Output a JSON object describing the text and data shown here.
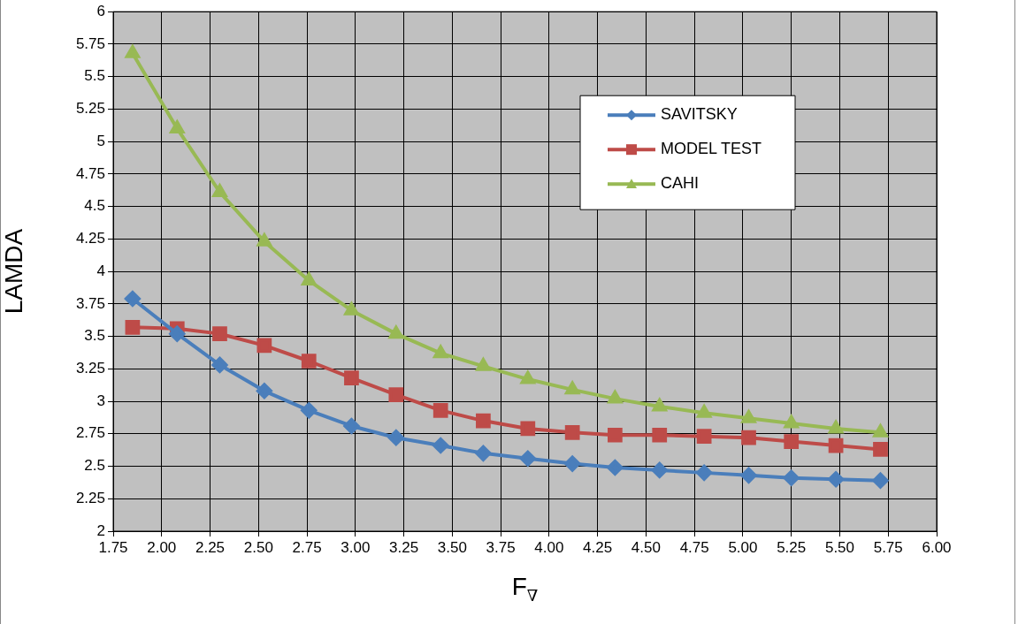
{
  "chart_data": {
    "type": "line",
    "xlabel": "F$_{∇}$",
    "ylabel": "LAMDA",
    "xlim": [
      1.75,
      6
    ],
    "xticks": [
      {
        "value": 1.75,
        "label": "1.75"
      },
      {
        "value": 2,
        "label": "2.00"
      },
      {
        "value": 2.25,
        "label": "2.25"
      },
      {
        "value": 2.5,
        "label": "2.50"
      },
      {
        "value": 2.75,
        "label": "2.75"
      },
      {
        "value": 3,
        "label": "3.00"
      },
      {
        "value": 3.25,
        "label": "3.25"
      },
      {
        "value": 3.5,
        "label": "3.50"
      },
      {
        "value": 3.75,
        "label": "3.75"
      },
      {
        "value": 4,
        "label": "4.00"
      },
      {
        "value": 4.25,
        "label": "4.25"
      },
      {
        "value": 4.5,
        "label": "4.50"
      },
      {
        "value": 4.75,
        "label": "4.75"
      },
      {
        "value": 5,
        "label": "5.00"
      },
      {
        "value": 5.25,
        "label": "5.25"
      },
      {
        "value": 5.5,
        "label": "5.50"
      },
      {
        "value": 5.75,
        "label": "5.75"
      },
      {
        "value": 6,
        "label": "6.00"
      }
    ],
    "ylim": [
      2,
      6
    ],
    "yticks": [
      2,
      2.25,
      2.5,
      2.75,
      3,
      3.25,
      3.5,
      3.75,
      4,
      4.25,
      4.5,
      4.75,
      5,
      5.25,
      5.5,
      5.75,
      6
    ],
    "x": [
      1.85,
      2.08,
      2.3,
      2.53,
      2.76,
      2.98,
      3.21,
      3.44,
      3.66,
      3.89,
      4.12,
      4.34,
      4.57,
      4.8,
      5.03,
      5.25,
      5.48,
      5.71
    ],
    "series": [
      {
        "name": "SAVITSKY",
        "color": "#4a7ebb",
        "marker": "diamond",
        "values": [
          3.79,
          3.52,
          3.28,
          3.08,
          2.93,
          2.81,
          2.72,
          2.66,
          2.6,
          2.56,
          2.52,
          2.49,
          2.47,
          2.45,
          2.43,
          2.41,
          2.4,
          2.39
        ]
      },
      {
        "name": "MODEL TEST",
        "color": "#be4b48",
        "marker": "square",
        "values": [
          3.57,
          3.56,
          3.52,
          3.43,
          3.31,
          3.18,
          3.05,
          2.93,
          2.85,
          2.79,
          2.76,
          2.74,
          2.74,
          2.73,
          2.72,
          2.69,
          2.66,
          2.63
        ]
      },
      {
        "name": "CAHI",
        "color": "#98b954",
        "marker": "triangle",
        "values": [
          5.68,
          5.1,
          4.61,
          4.23,
          3.93,
          3.7,
          3.52,
          3.37,
          3.27,
          3.17,
          3.09,
          3.02,
          2.96,
          2.91,
          2.87,
          2.83,
          2.79,
          2.76
        ]
      }
    ],
    "grid": true,
    "legend": "top right",
    "line_style": "solid"
  }
}
